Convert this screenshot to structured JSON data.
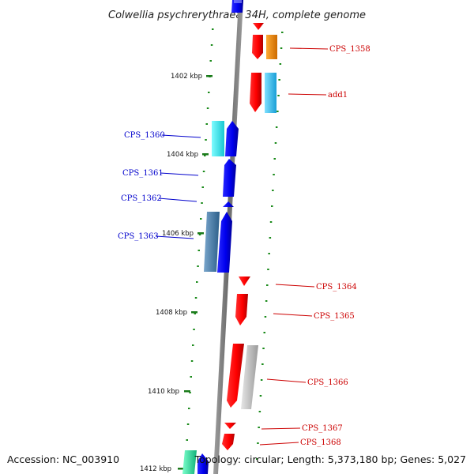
{
  "title": "Colwellia psychrerythraea 34H, complete genome",
  "footer": {
    "accession": "Accession: NC_003910",
    "topology": "Topology: circular; Length: 5,373,180 bp; Genes: 5,027"
  },
  "kbp_labels": [
    "1402 kbp",
    "1404 kbp",
    "1406 kbp",
    "1408 kbp",
    "1410 kbp",
    "1412 kbp"
  ],
  "genes_reverse": [
    {
      "label": "CPS_1360",
      "color": "#0000cc"
    },
    {
      "label": "CPS_1361",
      "color": "#0000cc"
    },
    {
      "label": "CPS_1362",
      "color": "#0000cc"
    },
    {
      "label": "CPS_1363",
      "color": "#0000cc"
    }
  ],
  "genes_forward": [
    {
      "label": "CPS_1358",
      "color": "#cc0000"
    },
    {
      "label": "add1",
      "color": "#cc0000"
    },
    {
      "label": "CPS_1364",
      "color": "#cc0000"
    },
    {
      "label": "CPS_1365",
      "color": "#cc0000"
    },
    {
      "label": "CPS_1366",
      "color": "#cc0000"
    },
    {
      "label": "CPS_1367",
      "color": "#cc0000"
    },
    {
      "label": "CPS_1368",
      "color": "#cc0000"
    }
  ]
}
